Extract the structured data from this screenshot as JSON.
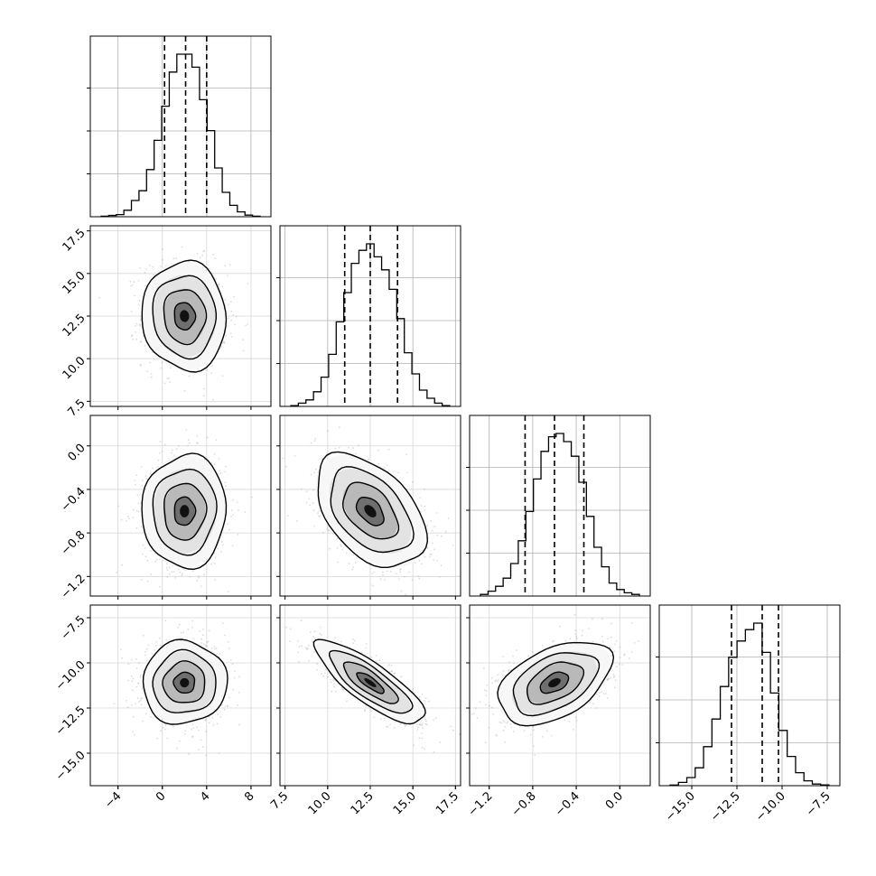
{
  "chart_data": {
    "type": "corner",
    "n_params": 4,
    "grid": true,
    "params": [
      {
        "range": [
          -6.5,
          9.8
        ],
        "ticks": [
          -4,
          0,
          4,
          8
        ],
        "tick_labels": [
          "−4",
          "0",
          "4",
          "8"
        ],
        "quantiles": [
          0.2,
          2.1,
          4.0
        ],
        "hist_density": [
          0.003,
          0.008,
          0.013,
          0.04,
          0.1,
          0.16,
          0.29,
          0.47,
          0.68,
          0.89,
          1.0,
          1.0,
          0.92,
          0.72,
          0.53,
          0.3,
          0.15,
          0.07,
          0.03,
          0.01,
          0.003
        ]
      },
      {
        "range": [
          7.2,
          17.8
        ],
        "ticks": [
          7.5,
          10.0,
          12.5,
          15.0,
          17.5
        ],
        "tick_labels": [
          "7.5",
          "10.0",
          "12.5",
          "15.0",
          "17.5"
        ],
        "quantiles": [
          11.0,
          12.5,
          14.1
        ],
        "hist_density": [
          0.005,
          0.02,
          0.04,
          0.09,
          0.18,
          0.32,
          0.52,
          0.7,
          0.88,
          0.96,
          1.0,
          0.92,
          0.84,
          0.72,
          0.54,
          0.33,
          0.2,
          0.1,
          0.05,
          0.02,
          0.005
        ]
      },
      {
        "range": [
          -1.38,
          0.28
        ],
        "ticks": [
          -1.2,
          -0.8,
          -0.4,
          0.0
        ],
        "tick_labels": [
          "−1.2",
          "−0.8",
          "−0.4",
          "0.0"
        ],
        "quantiles": [
          -0.87,
          -0.6,
          -0.33
        ],
        "hist_density": [
          0.01,
          0.03,
          0.06,
          0.11,
          0.2,
          0.34,
          0.52,
          0.72,
          0.89,
          0.98,
          1.0,
          0.95,
          0.86,
          0.7,
          0.49,
          0.3,
          0.18,
          0.08,
          0.04,
          0.02,
          0.01
        ]
      },
      {
        "range": [
          -16.8,
          -6.8
        ],
        "ticks": [
          -15.0,
          -12.5,
          -10.0,
          -7.5
        ],
        "tick_labels": [
          "−15.0",
          "−12.5",
          "−10.0",
          "−7.5"
        ],
        "quantiles": [
          -12.8,
          -11.1,
          -10.2
        ],
        "hist_density": [
          0.004,
          0.02,
          0.05,
          0.11,
          0.24,
          0.41,
          0.61,
          0.79,
          0.89,
          0.96,
          1.0,
          0.82,
          0.57,
          0.34,
          0.18,
          0.08,
          0.03,
          0.01,
          0.005
        ]
      }
    ],
    "pairs": [
      {
        "x": 0,
        "y": 1,
        "mean": [
          2.0,
          12.5
        ],
        "sd": [
          1.9,
          1.6
        ],
        "rho": -0.05
      },
      {
        "x": 0,
        "y": 2,
        "mean": [
          2.0,
          -0.6
        ],
        "sd": [
          1.9,
          0.26
        ],
        "rho": 0.02
      },
      {
        "x": 1,
        "y": 2,
        "mean": [
          12.5,
          -0.6
        ],
        "sd": [
          1.6,
          0.26
        ],
        "rho": -0.45
      },
      {
        "x": 0,
        "y": 3,
        "mean": [
          2.0,
          -11.1
        ],
        "sd": [
          1.9,
          1.15
        ],
        "rho": 0.02
      },
      {
        "x": 1,
        "y": 3,
        "mean": [
          12.5,
          -11.1
        ],
        "sd": [
          1.6,
          1.15
        ],
        "rho": -0.82
      },
      {
        "x": 2,
        "y": 3,
        "mean": [
          -0.6,
          -11.1
        ],
        "sd": [
          0.26,
          1.15
        ],
        "rho": 0.45
      }
    ],
    "contour_levels_sigma": [
      0.5,
      1.0,
      1.5,
      2.0
    ]
  }
}
